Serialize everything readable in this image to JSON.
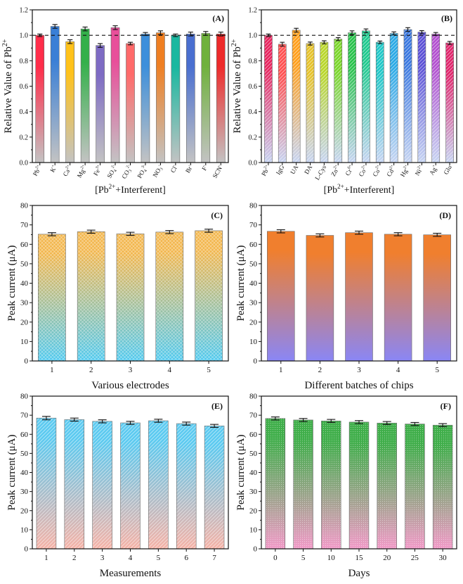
{
  "chart_data": [
    {
      "panel": "(A)",
      "type": "bar",
      "xlabel": "[Pb2+ +Interferent]",
      "xlabel_parts": [
        "[Pb",
        "2+",
        "+Interferent]"
      ],
      "ylabel": "Relative Value of Pb2+",
      "ylabel_parts": [
        "Relative Value of Pb",
        "2+"
      ],
      "ylim": [
        0.0,
        1.2
      ],
      "yticks": [
        "0.0",
        "0.2",
        "0.4",
        "0.6",
        "0.8",
        "1.0",
        "1.2"
      ],
      "reference_line": 1.0,
      "tick_label_style": "rotated",
      "categories": [
        {
          "base": "Pb",
          "sup": "2+"
        },
        {
          "base": "K",
          "sup": "+"
        },
        {
          "base": "Ca",
          "sup": "2+"
        },
        {
          "base": "Mg",
          "sup": "2+"
        },
        {
          "base": "Fe",
          "sup": "3+"
        },
        {
          "base": "SO",
          "sub": "4",
          "sup": "2-"
        },
        {
          "base": "CO",
          "sub": "3",
          "sup": "2-"
        },
        {
          "base": "PO",
          "sub": "4",
          "sup": "3-"
        },
        {
          "base": "NO",
          "sub": "3",
          "sup": "-"
        },
        {
          "base": "Cl",
          "sup": "-"
        },
        {
          "base": "Br",
          "sup": "-"
        },
        {
          "base": "F",
          "sup": "-"
        },
        {
          "base": "SCN",
          "sup": "-"
        }
      ],
      "values": [
        1.0,
        1.07,
        0.95,
        1.05,
        0.92,
        1.06,
        0.935,
        1.01,
        1.02,
        1.0,
        1.01,
        1.015,
        1.01
      ],
      "errors": [
        0.01,
        0.015,
        0.015,
        0.015,
        0.015,
        0.015,
        0.01,
        0.012,
        0.015,
        0.01,
        0.015,
        0.015,
        0.015
      ],
      "colors_top": [
        "#ff2d4a",
        "#3a7fd6",
        "#ffc21a",
        "#34b04a",
        "#7e6bc4",
        "#e84f9a",
        "#ff6a6a",
        "#3d8fdb",
        "#ef7f22",
        "#1ab8a0",
        "#4a6fd0",
        "#6fb13c",
        "#ee2b2b"
      ],
      "color_bottom": "#c3c3c3",
      "pattern": "none"
    },
    {
      "panel": "(B)",
      "type": "bar",
      "xlabel": "[Pb2+ +Interferent]",
      "xlabel_parts": [
        "[Pb",
        "2+",
        "+Interferent]"
      ],
      "ylabel": "Relative Value of Pb2+",
      "ylabel_parts": [
        "Relative Value of Pb",
        "2+"
      ],
      "ylim": [
        0.0,
        1.2
      ],
      "yticks": [
        "0.0",
        "0.2",
        "0.4",
        "0.6",
        "0.8",
        "1.0",
        "1.2"
      ],
      "reference_line": 1.0,
      "tick_label_style": "rotated",
      "categories": [
        {
          "base": "Pb",
          "sup": "2+"
        },
        {
          "base": "IgG"
        },
        {
          "base": "UA"
        },
        {
          "base": "DA"
        },
        {
          "base": "L-Cys"
        },
        {
          "base": "Zn",
          "sup": "2+"
        },
        {
          "base": "Cr",
          "sup": "6+"
        },
        {
          "base": "Co",
          "sup": "2+"
        },
        {
          "base": "Cu",
          "sup": "2+"
        },
        {
          "base": "Cd",
          "sup": "2+"
        },
        {
          "base": "Hg",
          "sup": "2+"
        },
        {
          "base": "Ni",
          "sup": "2+"
        },
        {
          "base": "Ag",
          "sup": "+"
        },
        {
          "base": "Glu"
        }
      ],
      "values": [
        1.0,
        0.93,
        1.04,
        0.935,
        0.945,
        0.97,
        1.02,
        1.035,
        0.945,
        1.015,
        1.045,
        1.025,
        1.01,
        0.94
      ],
      "errors": [
        0.01,
        0.015,
        0.015,
        0.012,
        0.012,
        0.012,
        0.015,
        0.015,
        0.01,
        0.012,
        0.015,
        0.012,
        0.012,
        0.012
      ],
      "colors_top": [
        "#e8245e",
        "#ff5050",
        "#ff9f1c",
        "#e6c22a",
        "#b9d62a",
        "#7ad62a",
        "#27c24a",
        "#1ec98e",
        "#1fc7c7",
        "#2aa9e6",
        "#3a78e0",
        "#5a4fd6",
        "#b24fcf",
        "#e0246b"
      ],
      "color_bottom": "#c6d4f2",
      "pattern": "diag"
    },
    {
      "panel": "(C)",
      "type": "bar",
      "xlabel": "Various electrodes",
      "ylabel": "Peak current (μA)",
      "ylim": [
        0,
        80
      ],
      "yticks": [
        "0",
        "10",
        "20",
        "30",
        "40",
        "50",
        "60",
        "70",
        "80"
      ],
      "tick_label_style": "plain",
      "categories": [
        "1",
        "2",
        "3",
        "4",
        "5"
      ],
      "values": [
        65.2,
        66.5,
        65.4,
        66.3,
        67.0
      ],
      "errors": [
        0.8,
        0.8,
        0.8,
        0.8,
        0.8
      ],
      "color_top": "#f2b64c",
      "color_bottom": "#4ec9ef",
      "pattern": "cross"
    },
    {
      "panel": "(D)",
      "type": "bar",
      "xlabel": "Different batches of chips",
      "ylabel": "Peak current (μA)",
      "ylim": [
        0,
        80
      ],
      "yticks": [
        "0",
        "10",
        "20",
        "30",
        "40",
        "50",
        "60",
        "70",
        "80"
      ],
      "tick_label_style": "plain",
      "categories": [
        "1",
        "2",
        "3",
        "4",
        "5"
      ],
      "values": [
        66.7,
        64.6,
        66.0,
        65.2,
        64.9
      ],
      "errors": [
        0.8,
        0.8,
        0.8,
        0.8,
        0.8
      ],
      "color_top": "#f07f2e",
      "color_bottom": "#8a86f5",
      "pattern": "none"
    },
    {
      "panel": "(E)",
      "type": "bar",
      "xlabel": "Measurements",
      "ylabel": "Peak current (μA)",
      "ylim": [
        0,
        80
      ],
      "yticks": [
        "0",
        "10",
        "20",
        "30",
        "40",
        "50",
        "60",
        "70",
        "80"
      ],
      "tick_label_style": "plain",
      "categories": [
        "1",
        "2",
        "3",
        "4",
        "5",
        "6",
        "7"
      ],
      "values": [
        68.5,
        67.7,
        66.8,
        66.0,
        67.1,
        65.6,
        64.4
      ],
      "errors": [
        0.9,
        0.8,
        0.8,
        0.8,
        0.8,
        0.8,
        0.8
      ],
      "color_top": "#5ccaf0",
      "color_bottom": "#f6b2a6",
      "pattern": "diag"
    },
    {
      "panel": "(F)",
      "type": "bar",
      "xlabel": "Days",
      "ylabel": "Peak current (μA)",
      "ylim": [
        0,
        80
      ],
      "yticks": [
        "0",
        "10",
        "20",
        "30",
        "40",
        "50",
        "60",
        "70",
        "80"
      ],
      "tick_label_style": "plain",
      "categories": [
        "0",
        "5",
        "10",
        "15",
        "20",
        "25",
        "30"
      ],
      "values": [
        68.3,
        67.5,
        67.0,
        66.4,
        65.9,
        65.4,
        64.8
      ],
      "errors": [
        0.8,
        0.8,
        0.8,
        0.8,
        0.8,
        0.8,
        0.8
      ],
      "color_top": "#3fae4a",
      "color_bottom": "#f29ac8",
      "pattern": "dots"
    }
  ]
}
